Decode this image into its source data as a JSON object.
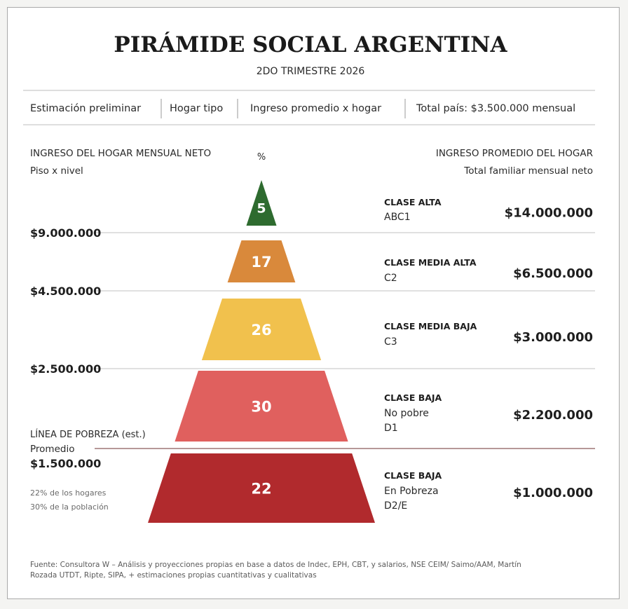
{
  "chart_data": {
    "type": "pyramid",
    "title": "PIRÁMIDE SOCIAL ARGENTINA",
    "subtitle": "2DO TRIMESTRE 2026",
    "info_row": [
      "Estimación preliminar",
      "Hogar tipo",
      "Ingreso promedio x hogar",
      "Total país: $3.500.000 mensual"
    ],
    "left_header": [
      "INGRESO DEL HOGAR MENSUAL NETO",
      "Piso x nivel"
    ],
    "center_header": "%",
    "right_header": [
      "INGRESO PROMEDIO DEL HOGAR",
      "Total familiar mensual neto"
    ],
    "tiers": [
      {
        "pct": 5,
        "label": "5",
        "class_name": "CLASE ALTA",
        "codes": [
          "ABC1"
        ],
        "avg_income": "$14.000.000",
        "color": "#2e6b2f"
      },
      {
        "pct": 17,
        "label": "17",
        "class_name": "CLASE MEDIA ALTA",
        "codes": [
          "C2"
        ],
        "avg_income": "$6.500.000",
        "color": "#d9893b"
      },
      {
        "pct": 26,
        "label": "26",
        "class_name": "CLASE MEDIA BAJA",
        "codes": [
          "C3"
        ],
        "avg_income": "$3.000.000",
        "color": "#f1c14d"
      },
      {
        "pct": 30,
        "label": "30",
        "class_name": "CLASE BAJA",
        "codes": [
          "No pobre",
          "D1"
        ],
        "avg_income": "$2.200.000",
        "color": "#e0605e"
      },
      {
        "pct": 22,
        "label": "22",
        "class_name": "CLASE BAJA",
        "codes": [
          "En Pobreza",
          "D2/E"
        ],
        "avg_income": "$1.000.000",
        "color": "#b12a2d"
      }
    ],
    "floors": [
      "$9.000.000",
      "$4.500.000",
      "$2.500.000"
    ],
    "poverty_line": {
      "lines": [
        "LÍNEA DE POBREZA (est.)",
        "Promedio"
      ],
      "value": "$1.500.000",
      "notes": [
        "22% de los hogares",
        "30% de la población"
      ]
    },
    "source": [
      "Fuente: Consultora W – Análisis y proyecciones propias en base a datos de Indec, EPH, CBT, y salarios, NSE  CEIM/ Saimo/AAM, Martín",
      "Rozada UTDT, Ripte, SIPA, + estimaciones propias cuantitativas y cualitativas"
    ]
  }
}
